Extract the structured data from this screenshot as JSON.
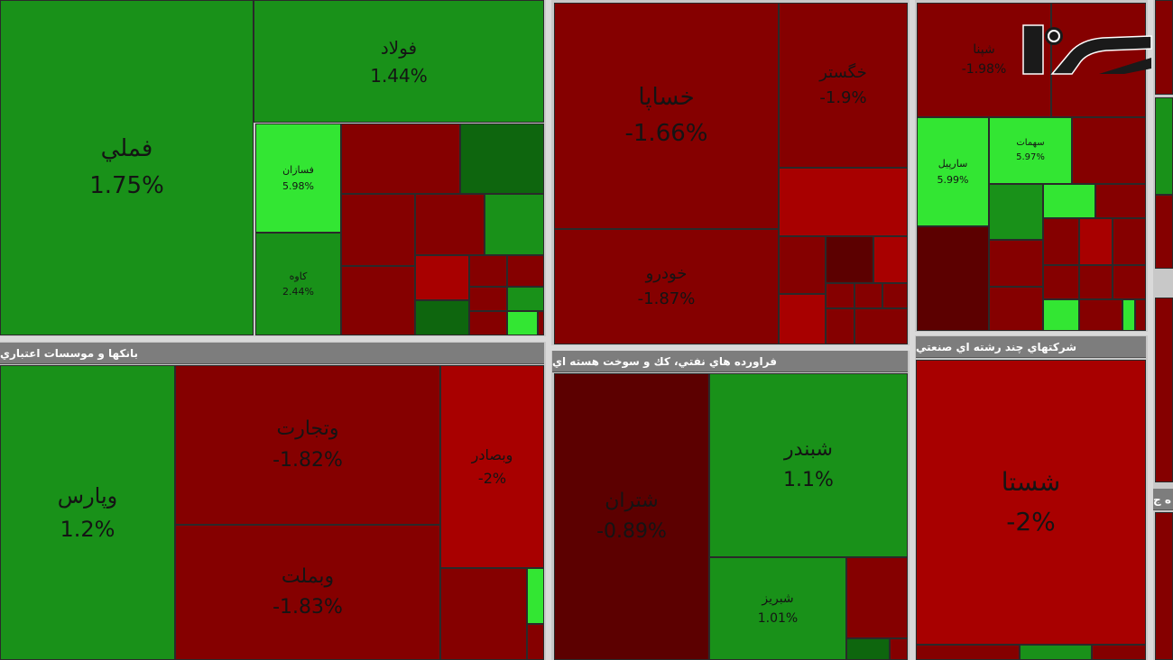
{
  "colors": {
    "up_strong": "#33e633",
    "up": "#199119",
    "up_dark": "#0e660e",
    "down": "#850000",
    "down_light": "#a80000",
    "down_dark": "#5c0000",
    "header_bg": "#7d7d7d"
  },
  "sector_headers": [
    "بانکها و موسسات اعتباري",
    "فراورده هاي نفتي، کك و سوخت هسته اي",
    "شرکتهاي چند رشته اي صنعتي",
    "ه ج"
  ],
  "logo": {
    "brand": "rokna",
    "icon": "rokna-logo"
  },
  "chart_data": {
    "type": "heatmap",
    "title": "",
    "unit": "%",
    "tiles": [
      {
        "symbol": "فملي",
        "change": 1.75,
        "label": "1.75%"
      },
      {
        "symbol": "فولاد",
        "change": 1.44,
        "label": "1.44%"
      },
      {
        "symbol": "فسازان",
        "change": 5.98,
        "label": "5.98%"
      },
      {
        "symbol": "کاوه",
        "change": 2.44,
        "label": "2.44%"
      },
      {
        "symbol": "وپارس",
        "change": 1.2,
        "label": "1.2%"
      },
      {
        "symbol": "وتجارت",
        "change": -1.82,
        "label": "-1.82%"
      },
      {
        "symbol": "وبملت",
        "change": -1.83,
        "label": "-1.83%"
      },
      {
        "symbol": "وبصادر",
        "change": -2,
        "label": "-2%"
      },
      {
        "symbol": "خساپا",
        "change": -1.66,
        "label": "-1.66%"
      },
      {
        "symbol": "خگستر",
        "change": -1.9,
        "label": "-1.9%"
      },
      {
        "symbol": "خودرو",
        "change": -1.87,
        "label": "-1.87%"
      },
      {
        "symbol": "شپنا",
        "change": -1.98,
        "label": "-1.98%"
      },
      {
        "symbol": "سارپيل",
        "change": 5.99,
        "label": "5.99%"
      },
      {
        "symbol": "سهمات",
        "change": 5.97,
        "label": "5.97%"
      },
      {
        "symbol": "شتران",
        "change": -0.89,
        "label": "-0.89%"
      },
      {
        "symbol": "شبندر",
        "change": 1.1,
        "label": "1.1%"
      },
      {
        "symbol": "شبريز",
        "change": 1.01,
        "label": "1.01%"
      },
      {
        "symbol": "شستا",
        "change": -2,
        "label": "-2%"
      }
    ]
  }
}
